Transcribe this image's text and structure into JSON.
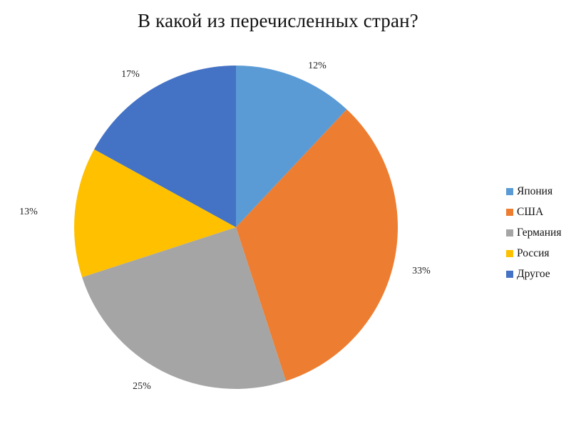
{
  "colors": {
    "japan": "#5b9bd5",
    "usa": "#ed7d31",
    "germany": "#a5a5a5",
    "russia": "#ffc000",
    "other": "#4472c4"
  },
  "chart_data": {
    "type": "pie",
    "title": "В какой из перечисленных стран?",
    "legend_position": "right",
    "slices": [
      {
        "label": "Япония",
        "value": 12,
        "display": "12%",
        "color": "#5b9bd5"
      },
      {
        "label": "США",
        "value": 33,
        "display": "33%",
        "color": "#ed7d31"
      },
      {
        "label": "Германия",
        "value": 25,
        "display": "25%",
        "color": "#a5a5a5"
      },
      {
        "label": "Россия",
        "value": 13,
        "display": "13%",
        "color": "#ffc000"
      },
      {
        "label": "Другое",
        "value": 17,
        "display": "17%",
        "color": "#4472c4"
      }
    ]
  }
}
